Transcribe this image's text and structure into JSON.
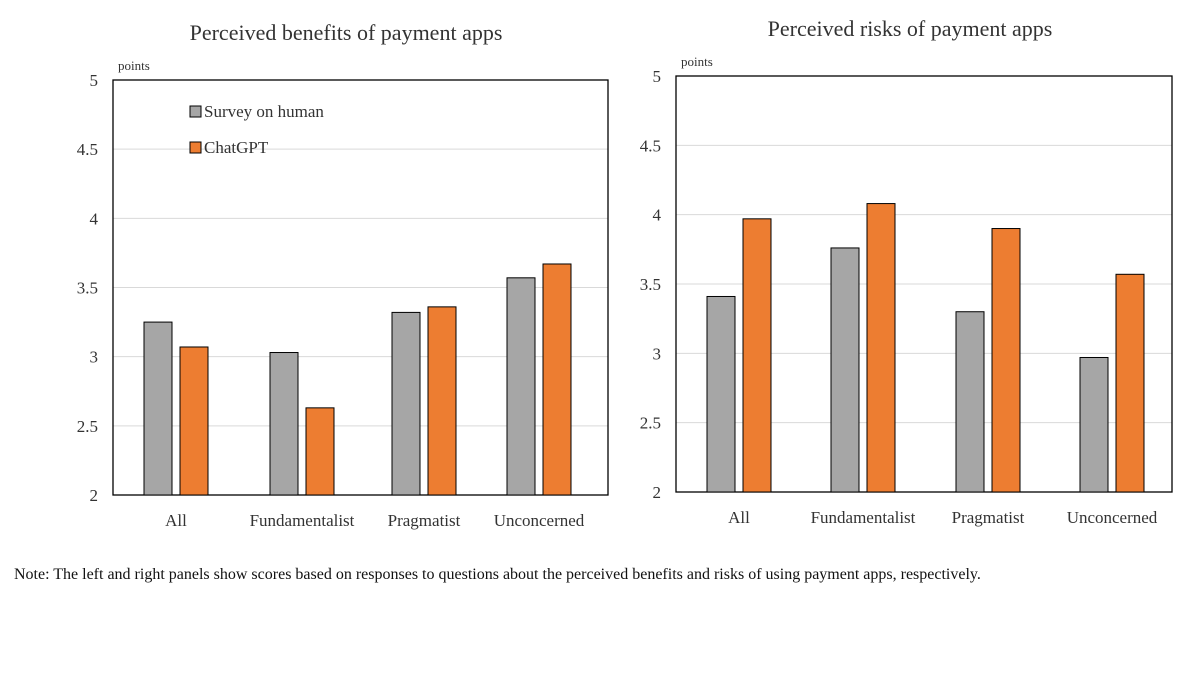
{
  "note": "Note: The left and right panels show scores based on responses to questions about the perceived benefits and risks of using payment apps, respectively.",
  "colors": {
    "survey": "#a6a6a6",
    "chatgpt": "#ed7d31",
    "grid": "#d9d9d9",
    "axis": "#000000"
  },
  "chart_data": [
    {
      "type": "bar",
      "title": "Perceived benefits of payment apps",
      "ylabel": "points",
      "xlabel": "",
      "ylim": [
        2,
        5
      ],
      "yticks": [
        "2",
        "2.5",
        "3",
        "3.5",
        "4",
        "4.5",
        "5"
      ],
      "grid": true,
      "legend": "top-left",
      "categories": [
        "All",
        "Fundamentalist",
        "Pragmatist",
        "Unconcerned"
      ],
      "series": [
        {
          "name": "Survey on human",
          "color": "#a6a6a6",
          "values": [
            3.25,
            3.03,
            3.32,
            3.57
          ]
        },
        {
          "name": "ChatGPT",
          "color": "#ed7d31",
          "values": [
            3.07,
            2.63,
            3.36,
            3.67
          ]
        }
      ]
    },
    {
      "type": "bar",
      "title": "Perceived risks of payment apps",
      "ylabel": "points",
      "xlabel": "",
      "ylim": [
        2,
        5
      ],
      "yticks": [
        "2",
        "2.5",
        "3",
        "3.5",
        "4",
        "4.5",
        "5"
      ],
      "grid": true,
      "legend": "none",
      "categories": [
        "All",
        "Fundamentalist",
        "Pragmatist",
        "Unconcerned"
      ],
      "series": [
        {
          "name": "Survey on human",
          "color": "#a6a6a6",
          "values": [
            3.41,
            3.76,
            3.3,
            2.97
          ]
        },
        {
          "name": "ChatGPT",
          "color": "#ed7d31",
          "values": [
            3.97,
            4.08,
            3.9,
            3.57
          ]
        }
      ]
    }
  ]
}
